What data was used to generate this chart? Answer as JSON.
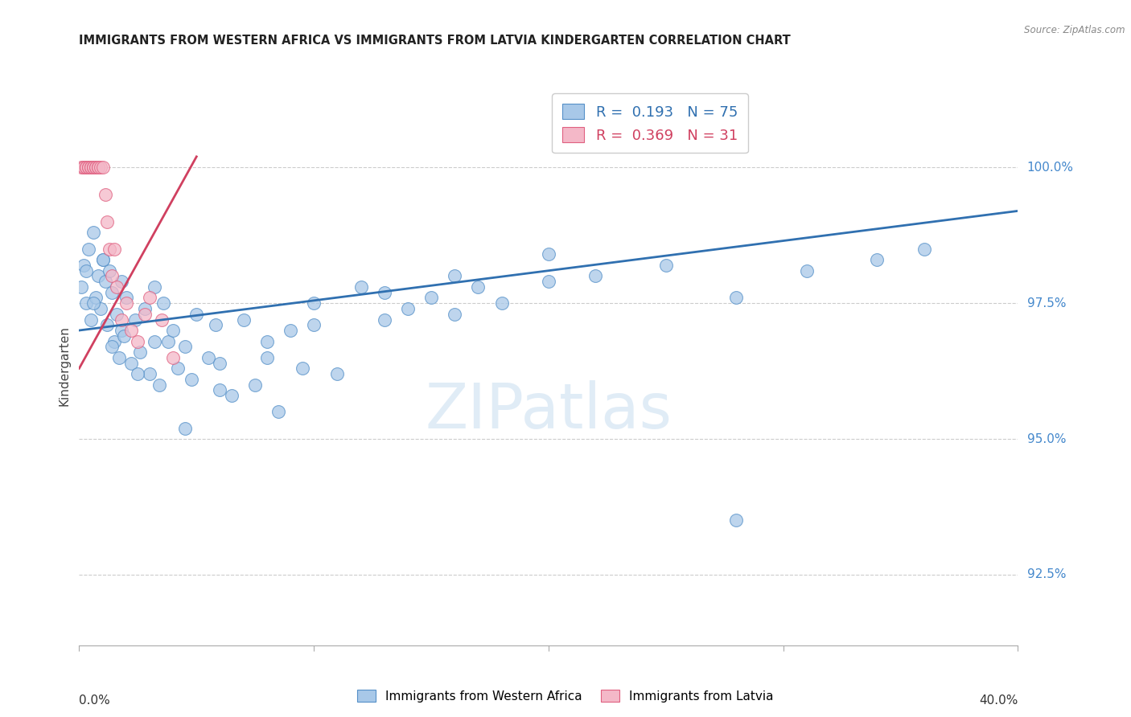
{
  "title": "IMMIGRANTS FROM WESTERN AFRICA VS IMMIGRANTS FROM LATVIA KINDERGARTEN CORRELATION CHART",
  "source": "Source: ZipAtlas.com",
  "ylabel": "Kindergarten",
  "yticks": [
    92.5,
    95.0,
    97.5,
    100.0
  ],
  "ytick_labels": [
    "92.5%",
    "95.0%",
    "97.5%",
    "100.0%"
  ],
  "xmin": 0.0,
  "xmax": 0.4,
  "ymin": 91.2,
  "ymax": 101.5,
  "blue_R": 0.193,
  "blue_N": 75,
  "pink_R": 0.369,
  "pink_N": 31,
  "blue_color": "#a8c8e8",
  "pink_color": "#f4b8c8",
  "blue_edge_color": "#5590c8",
  "pink_edge_color": "#e06080",
  "blue_line_color": "#3070b0",
  "pink_line_color": "#d04060",
  "legend_blue_label": "Immigrants from Western Africa",
  "legend_pink_label": "Immigrants from Latvia",
  "watermark": "ZIPatlas",
  "blue_scatter_x": [
    0.001,
    0.002,
    0.003,
    0.004,
    0.005,
    0.006,
    0.007,
    0.008,
    0.009,
    0.01,
    0.011,
    0.012,
    0.013,
    0.014,
    0.015,
    0.016,
    0.017,
    0.018,
    0.019,
    0.02,
    0.022,
    0.024,
    0.026,
    0.028,
    0.03,
    0.032,
    0.034,
    0.036,
    0.038,
    0.04,
    0.042,
    0.045,
    0.048,
    0.05,
    0.055,
    0.058,
    0.06,
    0.065,
    0.07,
    0.075,
    0.08,
    0.085,
    0.09,
    0.095,
    0.1,
    0.11,
    0.12,
    0.13,
    0.14,
    0.15,
    0.16,
    0.17,
    0.18,
    0.2,
    0.22,
    0.25,
    0.28,
    0.31,
    0.34,
    0.36,
    0.003,
    0.006,
    0.01,
    0.014,
    0.018,
    0.025,
    0.032,
    0.045,
    0.06,
    0.08,
    0.1,
    0.13,
    0.16,
    0.2,
    0.28
  ],
  "blue_scatter_y": [
    97.8,
    98.2,
    97.5,
    98.5,
    97.2,
    98.8,
    97.6,
    98.0,
    97.4,
    98.3,
    97.9,
    97.1,
    98.1,
    97.7,
    96.8,
    97.3,
    96.5,
    97.0,
    96.9,
    97.6,
    96.4,
    97.2,
    96.6,
    97.4,
    96.2,
    97.8,
    96.0,
    97.5,
    96.8,
    97.0,
    96.3,
    96.7,
    96.1,
    97.3,
    96.5,
    97.1,
    96.4,
    95.8,
    97.2,
    96.0,
    96.8,
    95.5,
    97.0,
    96.3,
    97.5,
    96.2,
    97.8,
    97.2,
    97.4,
    97.6,
    97.3,
    97.8,
    97.5,
    97.9,
    98.0,
    98.2,
    97.6,
    98.1,
    98.3,
    98.5,
    98.1,
    97.5,
    98.3,
    96.7,
    97.9,
    96.2,
    96.8,
    95.2,
    95.9,
    96.5,
    97.1,
    97.7,
    98.0,
    98.4,
    93.5
  ],
  "pink_scatter_x": [
    0.001,
    0.002,
    0.002,
    0.003,
    0.003,
    0.004,
    0.004,
    0.005,
    0.005,
    0.006,
    0.006,
    0.007,
    0.007,
    0.008,
    0.008,
    0.009,
    0.01,
    0.011,
    0.012,
    0.013,
    0.014,
    0.015,
    0.016,
    0.018,
    0.02,
    0.022,
    0.025,
    0.028,
    0.03,
    0.035,
    0.04
  ],
  "pink_scatter_y": [
    100.0,
    100.0,
    100.0,
    100.0,
    100.0,
    100.0,
    100.0,
    100.0,
    100.0,
    100.0,
    100.0,
    100.0,
    100.0,
    100.0,
    100.0,
    100.0,
    100.0,
    99.5,
    99.0,
    98.5,
    98.0,
    98.5,
    97.8,
    97.2,
    97.5,
    97.0,
    96.8,
    97.3,
    97.6,
    97.2,
    96.5
  ],
  "blue_trendline_x": [
    0.0,
    0.4
  ],
  "blue_trendline_y": [
    97.0,
    99.2
  ],
  "pink_trendline_x": [
    0.0,
    0.05
  ],
  "pink_trendline_y": [
    96.3,
    100.2
  ]
}
